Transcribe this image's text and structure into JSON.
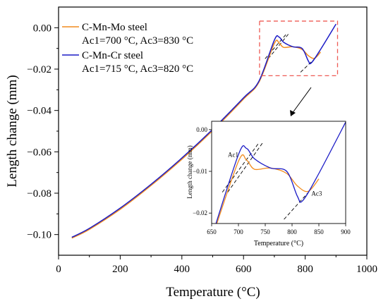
{
  "chart_data": {
    "type": "line",
    "title": "",
    "xlabel": "Temperature (°C)",
    "ylabel": "Length change (mm)",
    "xlim": [
      0,
      1000
    ],
    "ylim": [
      -0.11,
      0.01
    ],
    "xticks": [
      0,
      200,
      400,
      600,
      800,
      1000
    ],
    "yticks": [
      -0.1,
      -0.08,
      -0.06,
      -0.04,
      -0.02,
      0.0
    ],
    "xtick_labels": [
      "0",
      "200",
      "400",
      "600",
      "800",
      "1000"
    ],
    "ytick_labels": [
      "−0.10",
      "−0.08",
      "−0.06",
      "−0.04",
      "−0.02",
      "0.00"
    ],
    "grid": false,
    "legend_position": "top-left",
    "series": [
      {
        "name": "C-Mn-Mo steel",
        "note": "Ac1=700 °C, Ac3=830 °C",
        "color": "#f28c1e",
        "points": [
          [
            43,
            -0.1017
          ],
          [
            100,
            -0.0975
          ],
          [
            200,
            -0.0878
          ],
          [
            300,
            -0.0763
          ],
          [
            400,
            -0.0636
          ],
          [
            500,
            -0.0497
          ],
          [
            600,
            -0.0345
          ],
          [
            650,
            -0.0263
          ],
          [
            700,
            -0.0076
          ],
          [
            715,
            -0.0073
          ],
          [
            730,
            -0.0095
          ],
          [
            760,
            -0.0092
          ],
          [
            790,
            -0.0105
          ],
          [
            810,
            -0.0135
          ],
          [
            830,
            -0.0148
          ],
          [
            850,
            -0.0118
          ]
        ]
      },
      {
        "name": "C-Mn-Cr steel",
        "note": "Ac1=715 °C, Ac3=820 °C",
        "color": "#1c1cc6",
        "points": [
          [
            43,
            -0.1013
          ],
          [
            100,
            -0.097
          ],
          [
            200,
            -0.0872
          ],
          [
            300,
            -0.0757
          ],
          [
            400,
            -0.063
          ],
          [
            500,
            -0.0491
          ],
          [
            600,
            -0.0339
          ],
          [
            650,
            -0.0258
          ],
          [
            700,
            -0.006
          ],
          [
            715,
            -0.0045
          ],
          [
            730,
            -0.007
          ],
          [
            760,
            -0.0092
          ],
          [
            790,
            -0.01
          ],
          [
            810,
            -0.016
          ],
          [
            820,
            -0.017
          ],
          [
            850,
            -0.0105
          ],
          [
            900,
            0.0018
          ]
        ]
      }
    ],
    "reference_lines": [
      {
        "points": [
          [
            670,
            -0.015
          ],
          [
            738,
            -0.0032
          ]
        ]
      },
      {
        "points": [
          [
            680,
            -0.015
          ],
          [
            746,
            -0.003
          ]
        ]
      },
      {
        "points": [
          [
            785,
            -0.0215
          ],
          [
            832,
            -0.0148
          ]
        ]
      }
    ],
    "annotations": [
      {
        "text": "Ac1",
        "at": [
          700,
          -0.0065
        ]
      },
      {
        "text": "Ac3",
        "at": [
          836,
          -0.0158
        ]
      }
    ],
    "inset": {
      "xlabel": "Temperature (°C)",
      "ylabel": "Length change (mm)",
      "xlim": [
        650,
        900
      ],
      "ylim": [
        -0.0225,
        0.002
      ],
      "xticks": [
        650,
        700,
        750,
        800,
        850,
        900
      ],
      "yticks": [
        -0.02,
        -0.01,
        0.0
      ],
      "xtick_labels": [
        "650",
        "700",
        "750",
        "800",
        "850",
        "900"
      ],
      "ytick_labels": [
        "−0.02",
        "−0.01",
        "0.00"
      ],
      "zoom_region": {
        "xlim": [
          652,
          905
        ],
        "ylim": [
          -0.0232,
          0.0032
        ]
      }
    }
  }
}
